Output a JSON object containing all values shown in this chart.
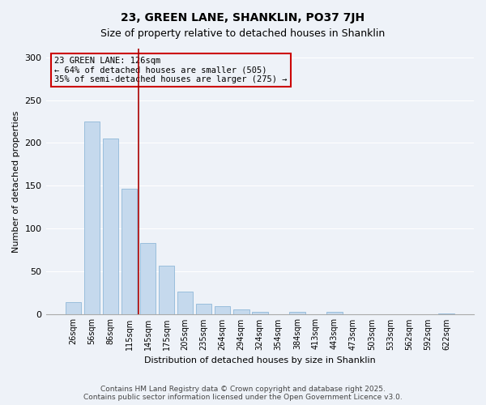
{
  "title": "23, GREEN LANE, SHANKLIN, PO37 7JH",
  "subtitle": "Size of property relative to detached houses in Shanklin",
  "xlabel": "Distribution of detached houses by size in Shanklin",
  "ylabel": "Number of detached properties",
  "bar_labels": [
    "26sqm",
    "56sqm",
    "86sqm",
    "115sqm",
    "145sqm",
    "175sqm",
    "205sqm",
    "235sqm",
    "264sqm",
    "294sqm",
    "324sqm",
    "354sqm",
    "384sqm",
    "413sqm",
    "443sqm",
    "473sqm",
    "503sqm",
    "533sqm",
    "562sqm",
    "592sqm",
    "622sqm"
  ],
  "bar_values": [
    14,
    225,
    205,
    147,
    83,
    57,
    27,
    12,
    10,
    6,
    3,
    0,
    3,
    0,
    3,
    0,
    0,
    0,
    0,
    0,
    1
  ],
  "bar_color": "#c5d9ed",
  "bar_edge_color": "#90b8d8",
  "annotation_line1": "23 GREEN LANE: 126sqm",
  "annotation_line2": "← 64% of detached houses are smaller (505)",
  "annotation_line3": "35% of semi-detached houses are larger (275) →",
  "vline_position": 3.5,
  "vline_color": "#aa0000",
  "ylim": [
    0,
    310
  ],
  "yticks": [
    0,
    50,
    100,
    150,
    200,
    250,
    300
  ],
  "footer_line1": "Contains HM Land Registry data © Crown copyright and database right 2025.",
  "footer_line2": "Contains public sector information licensed under the Open Government Licence v3.0.",
  "bg_color": "#eef2f8",
  "grid_color": "#ffffff",
  "annotation_edge_color": "#cc0000",
  "title_fontsize": 10,
  "subtitle_fontsize": 9,
  "ylabel_fontsize": 8,
  "xlabel_fontsize": 8,
  "tick_fontsize": 7,
  "annotation_fontsize": 7.5,
  "footer_fontsize": 6.5
}
